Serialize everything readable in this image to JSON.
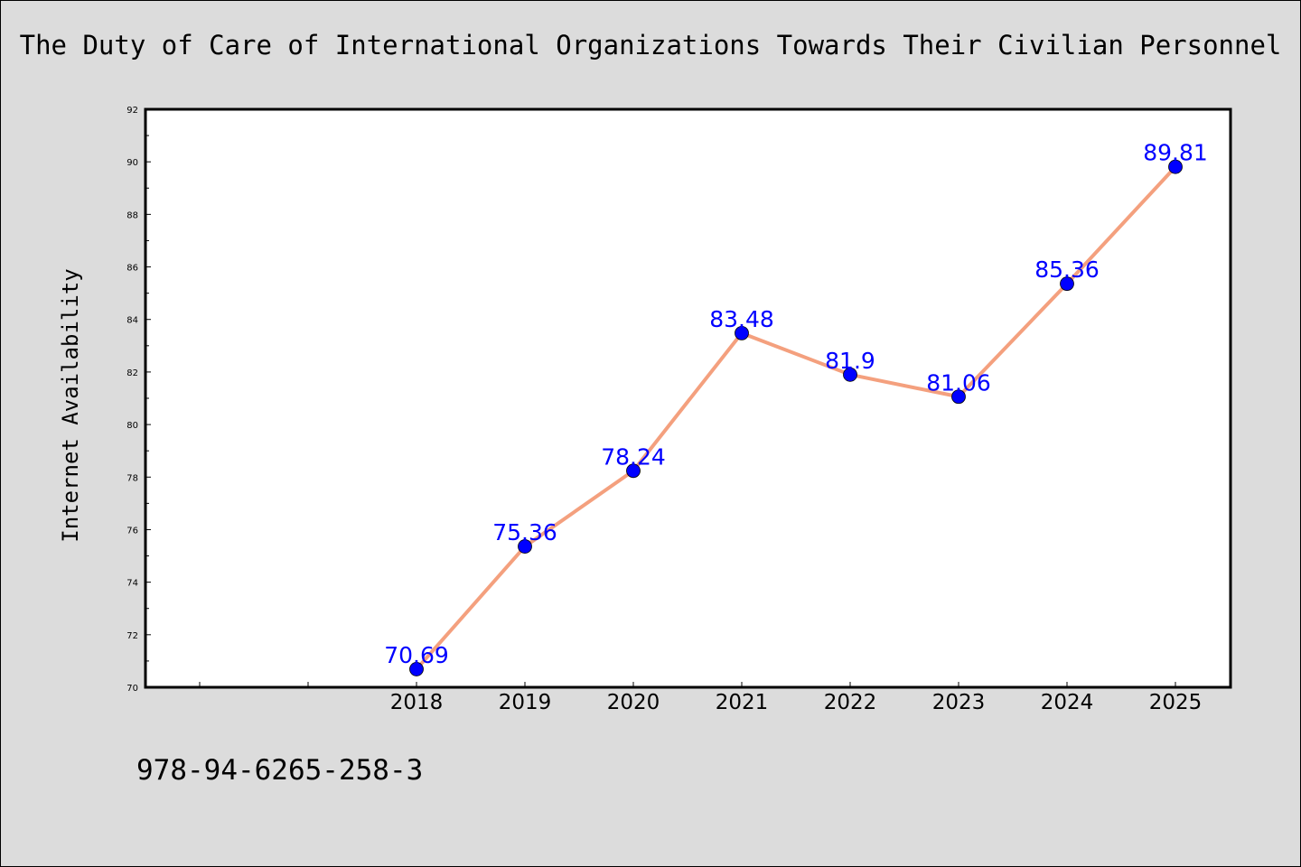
{
  "chart_data": {
    "type": "line",
    "title": "The Duty of Care of International Organizations Towards Their Civilian Personnel",
    "xlabel": "",
    "ylabel": "Internet Availability",
    "x": [
      "2018",
      "2019",
      "2020",
      "2021",
      "2022",
      "2023",
      "2024",
      "2025"
    ],
    "series": [
      {
        "values": [
          70.69,
          75.36,
          78.24,
          83.48,
          81.9,
          81.06,
          85.36,
          89.81
        ],
        "labels": [
          "70.69",
          "75.36",
          "78.24",
          "83.48",
          "81.9",
          "81.06",
          "85.36",
          "89.81"
        ]
      }
    ],
    "ylim": [
      70,
      92
    ],
    "yticks": [
      "70",
      "72",
      "74",
      "76",
      "78",
      "80",
      "82",
      "84",
      "86",
      "88",
      "90",
      "92"
    ],
    "grid": false,
    "colors": {
      "line": "#f4a07e",
      "marker": "#0000ff",
      "label": "#0000ff"
    }
  },
  "footer": {
    "isbn": "978-94-6265-258-3"
  }
}
